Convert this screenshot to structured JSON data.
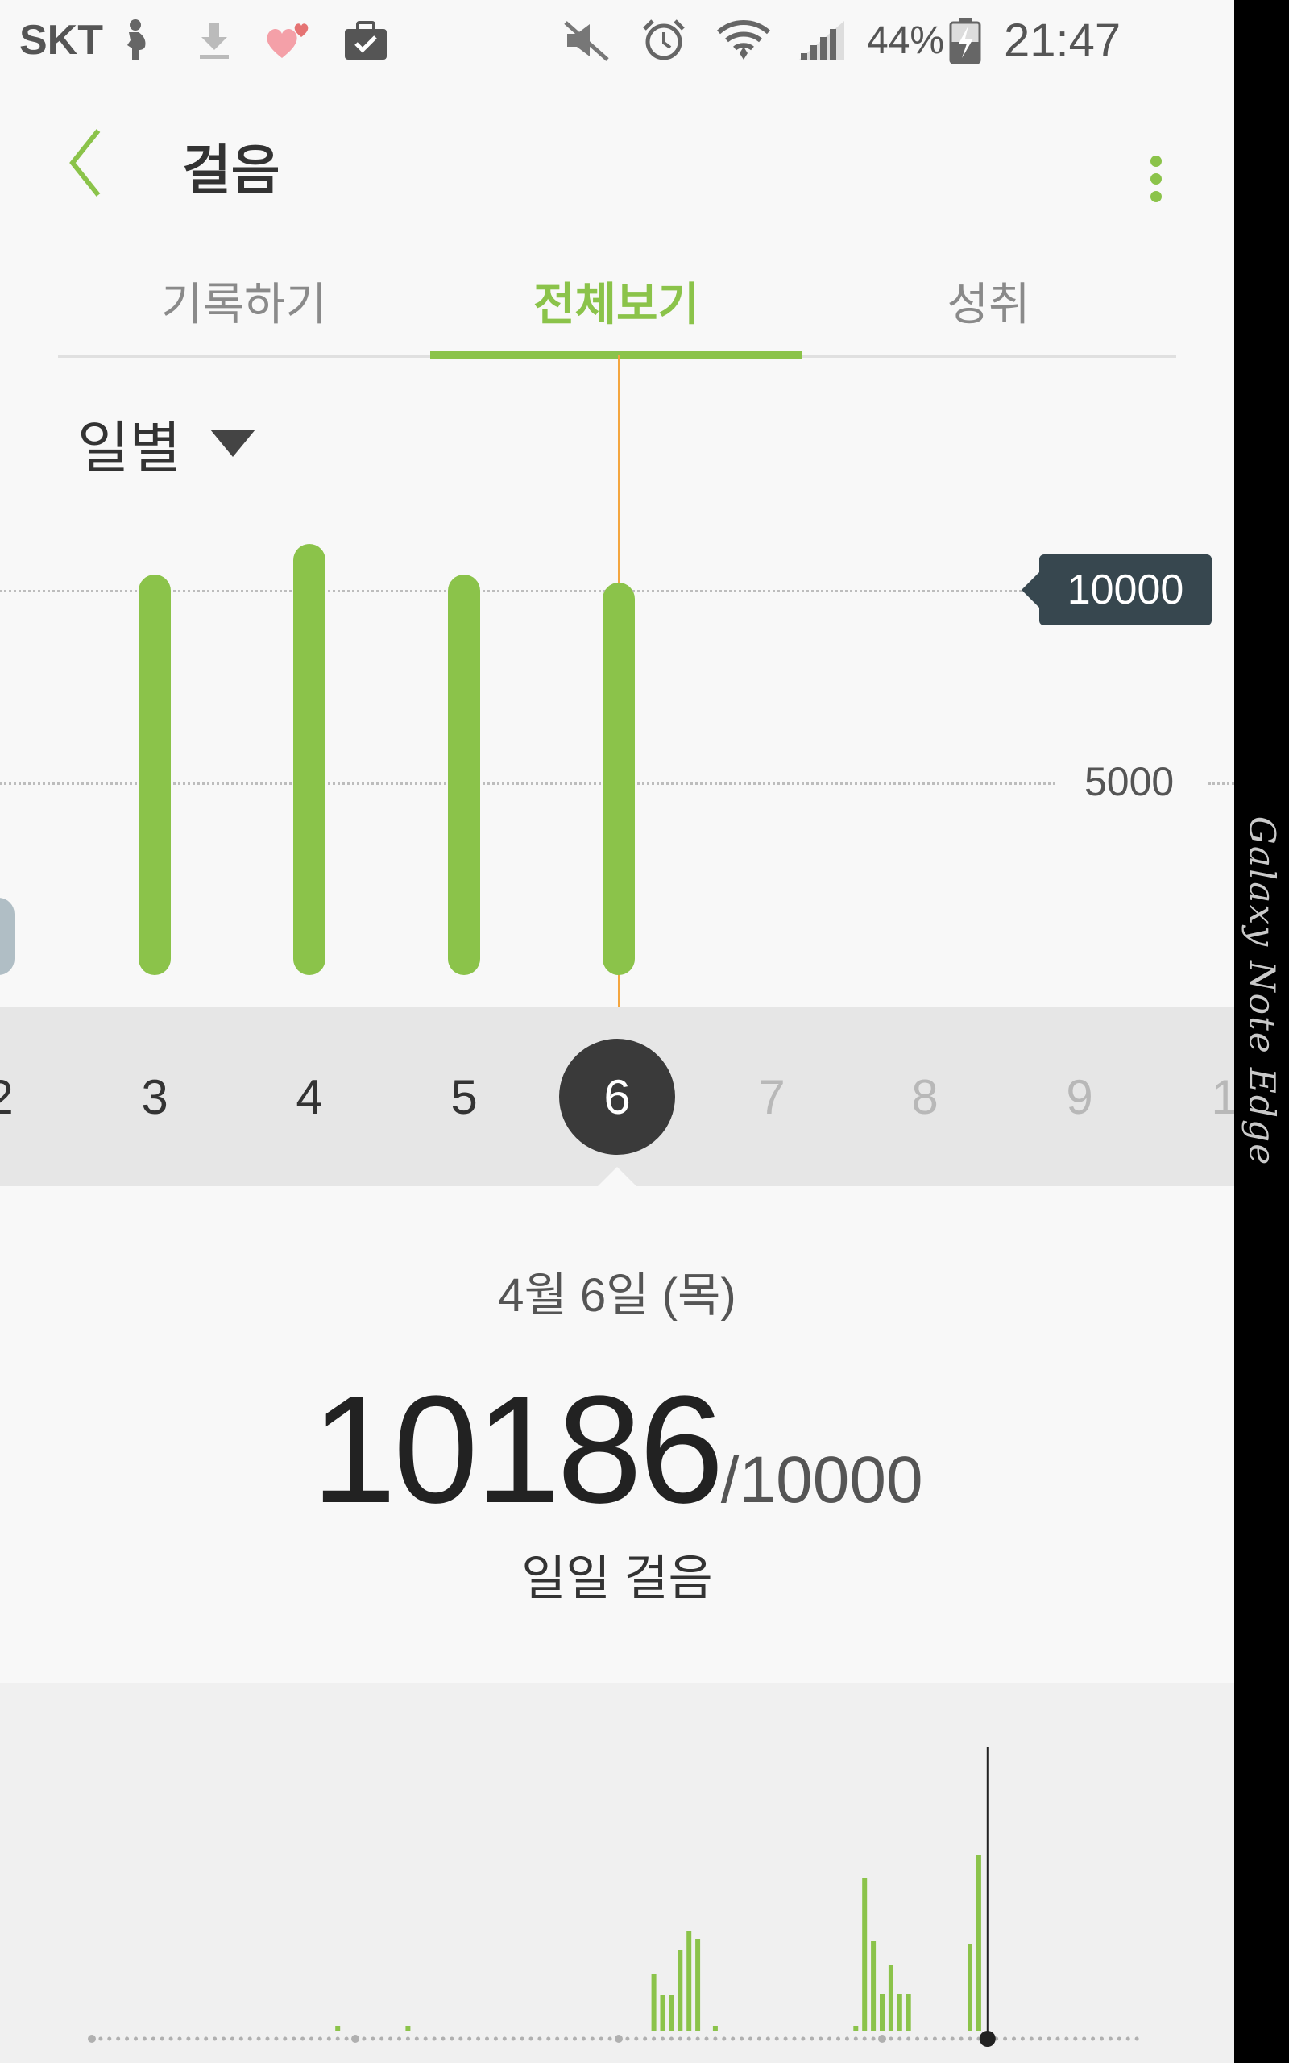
{
  "status_bar": {
    "carrier": "SKT",
    "battery_percent": "44%",
    "time": "21:47",
    "icons": [
      "pregnant-icon",
      "download-icon",
      "hearts-icon",
      "briefcase-check-icon",
      "mute-icon",
      "alarm-icon",
      "wifi-icon",
      "signal-icon",
      "battery-icon"
    ]
  },
  "header": {
    "title": "걸음",
    "back_icon": "back-arrow-icon",
    "more_icon": "more-vertical-icon",
    "accent_color": "#8bc34a"
  },
  "tabs": [
    {
      "label": "기록하기",
      "active": false
    },
    {
      "label": "전체보기",
      "active": true
    },
    {
      "label": "성취",
      "active": false
    }
  ],
  "period_selector": {
    "label": "일별"
  },
  "chart_data": {
    "type": "bar",
    "categories": [
      "2",
      "3",
      "4",
      "5",
      "6",
      "7",
      "8",
      "9"
    ],
    "values": [
      2000,
      10400,
      11200,
      10400,
      10186,
      null,
      null,
      null
    ],
    "selected": "6",
    "target": {
      "value": 10000,
      "label": "10000"
    },
    "y_ticks": [
      {
        "value": 5000,
        "label": "5000"
      }
    ],
    "ylim": [
      0,
      12000
    ],
    "bar_color": "#8bc34a",
    "highlight_line_color": "#f4a640"
  },
  "day_strip": {
    "days": [
      {
        "label": "2",
        "state": "past"
      },
      {
        "label": "3",
        "state": "past"
      },
      {
        "label": "4",
        "state": "past"
      },
      {
        "label": "5",
        "state": "past"
      },
      {
        "label": "6",
        "state": "selected"
      },
      {
        "label": "7",
        "state": "future"
      },
      {
        "label": "8",
        "state": "future"
      },
      {
        "label": "9",
        "state": "future"
      },
      {
        "label": "1",
        "state": "future"
      }
    ]
  },
  "detail": {
    "date": "4월 6일 (목)",
    "steps": "10186",
    "goal": "/10000",
    "caption": "일일 걸음"
  },
  "hourly_chart": {
    "type": "bar",
    "bins": 48,
    "values": [
      0,
      0,
      0,
      0,
      0,
      0,
      0,
      0,
      0,
      0,
      0,
      0,
      0,
      0,
      0,
      0,
      0,
      0,
      0,
      0,
      0,
      0,
      0,
      0,
      0,
      0,
      0,
      0,
      0,
      0,
      0,
      0,
      0,
      0,
      0,
      0,
      0,
      0,
      0,
      0,
      0,
      0,
      0,
      0,
      0,
      0,
      0,
      0
    ],
    "note_values": {
      "28": 6,
      "36": 6,
      "64": 70,
      "65": 44,
      "66": 44,
      "67": 100,
      "68": 124,
      "69": 114,
      "71": 6,
      "87": 6,
      "88": 190,
      "89": 112,
      "90": 46,
      "91": 82,
      "92": 46,
      "93": 46,
      "100": 108,
      "101": 218
    },
    "current_index": 102,
    "total_slots": 120
  },
  "side_edge": {
    "text": "Galaxy Note Edge"
  }
}
